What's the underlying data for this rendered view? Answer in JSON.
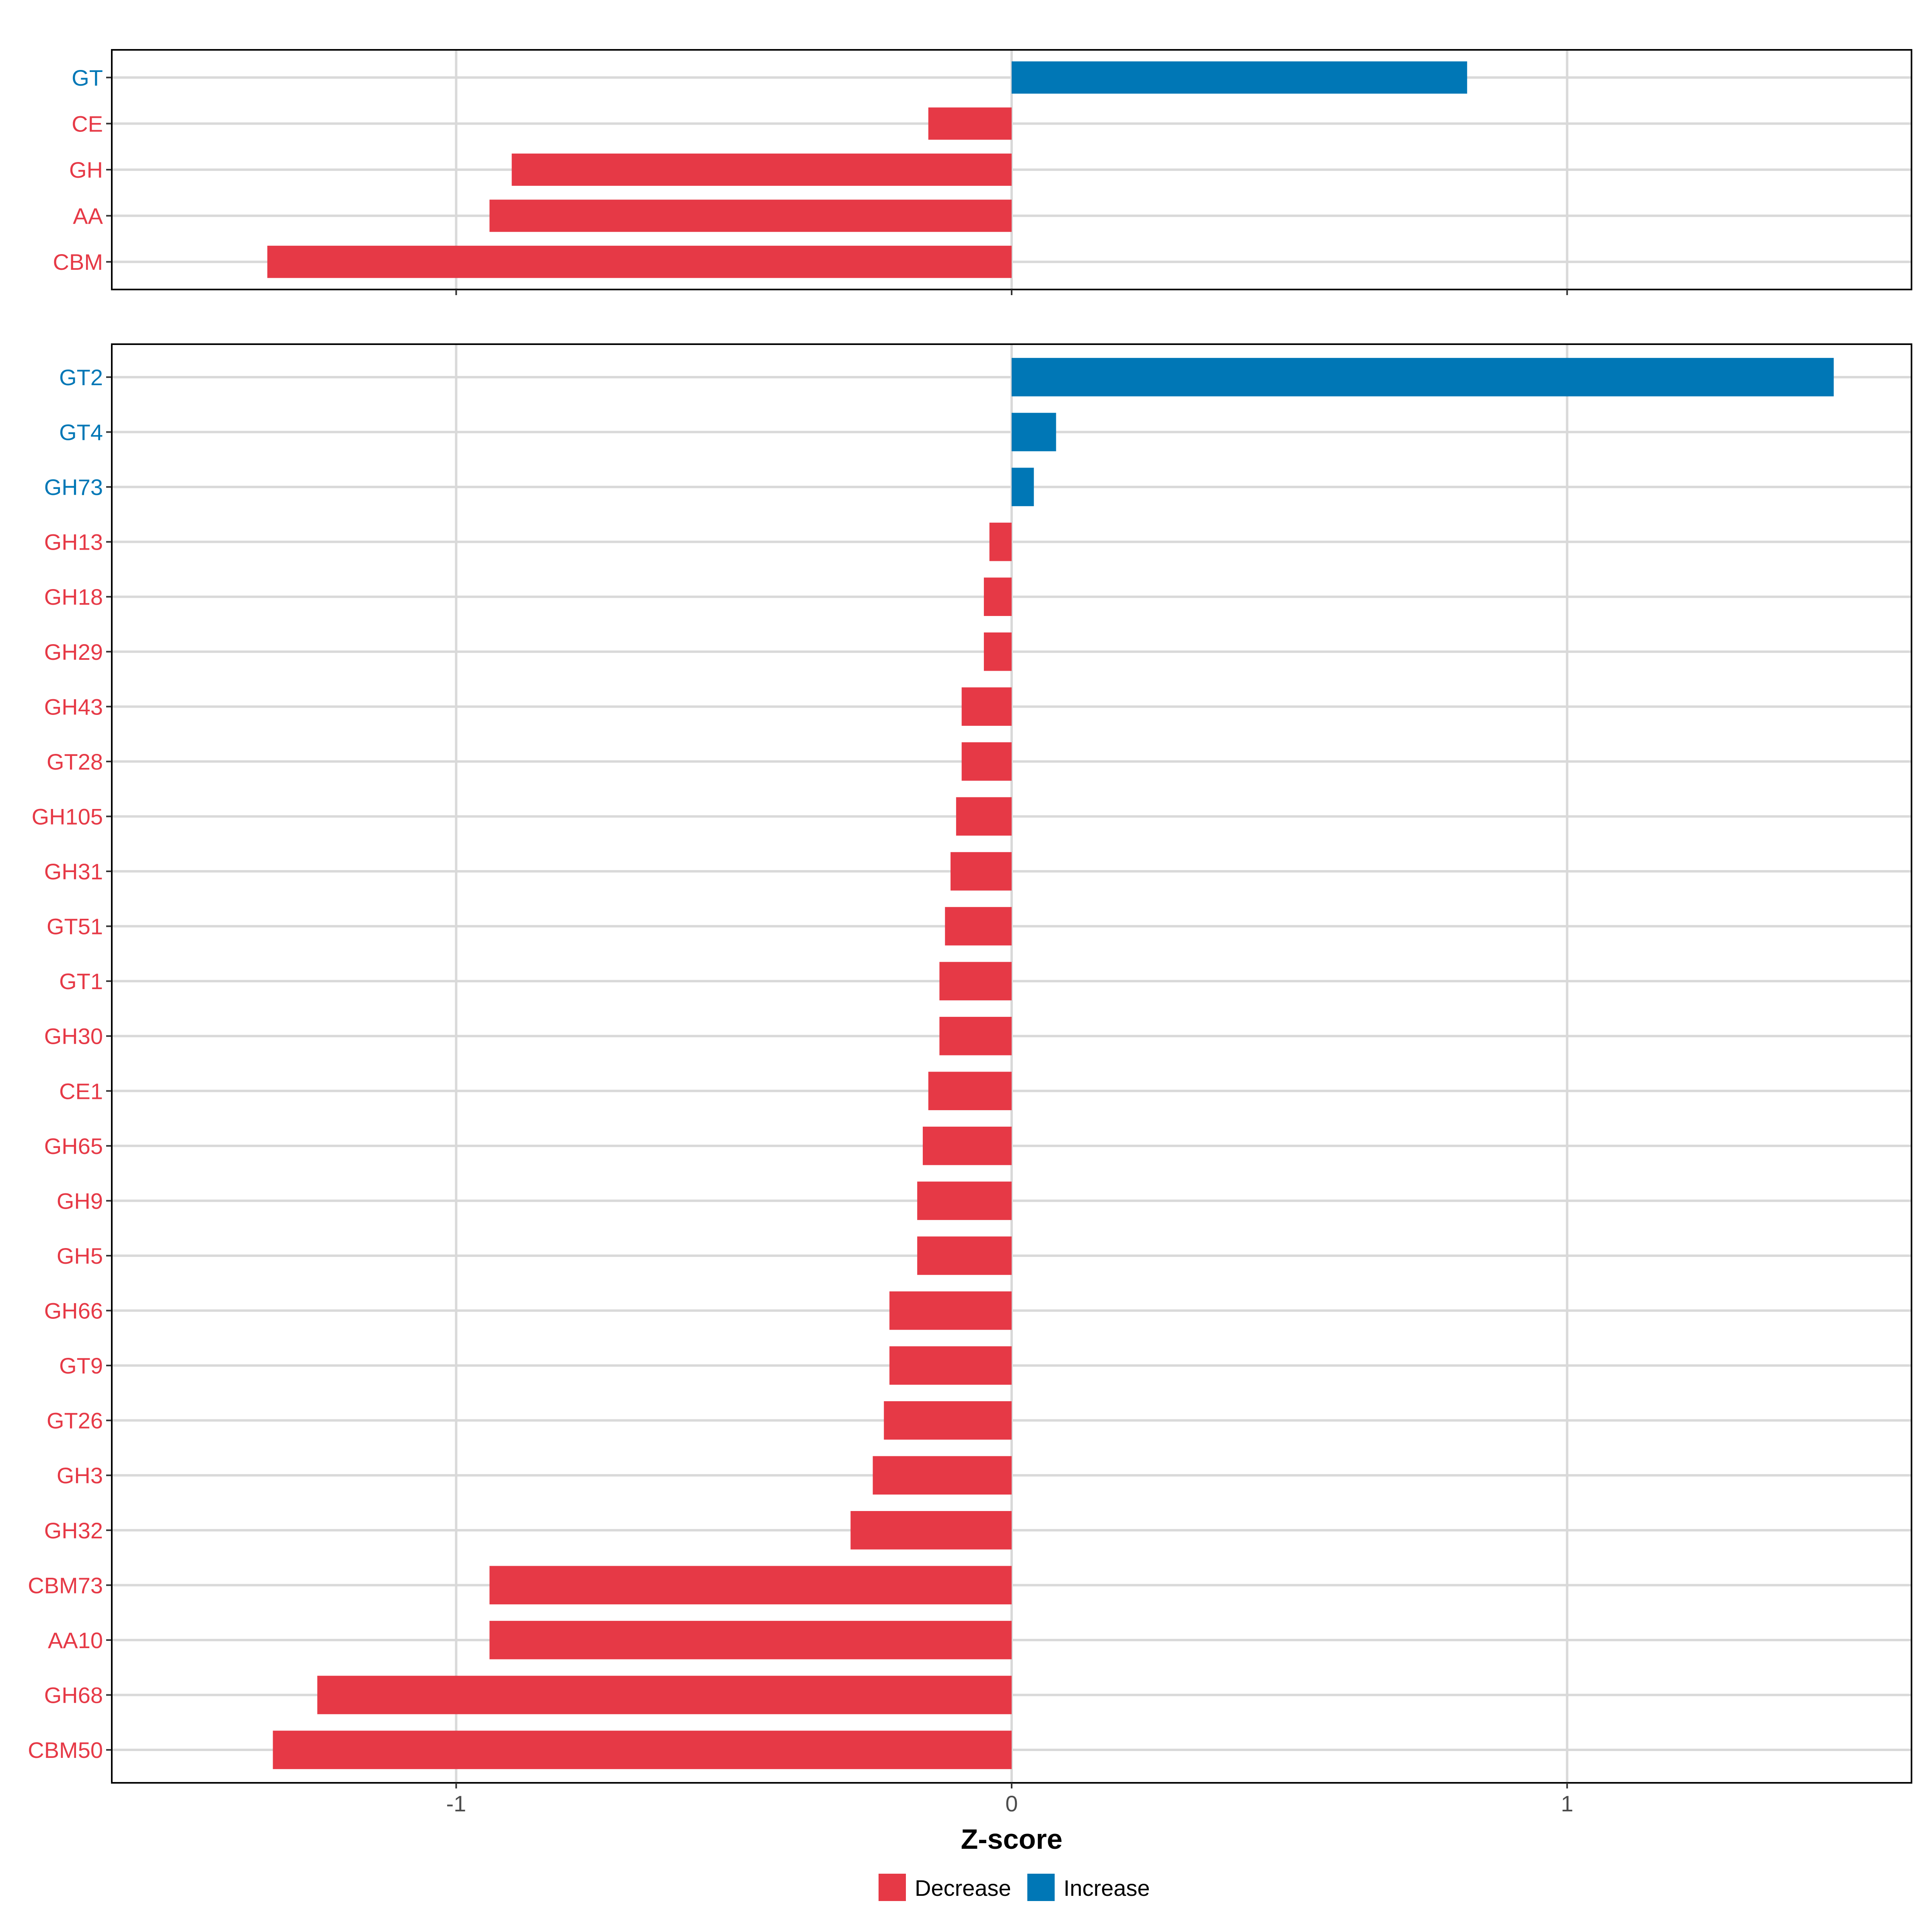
{
  "colors": {
    "decrease": "#E63946",
    "increase": "#0077B6",
    "grid": "#D9D9D9",
    "axis": "#333333"
  },
  "chart_data": [
    {
      "type": "bar",
      "orientation": "horizontal",
      "panel": "top",
      "categories": [
        "GT",
        "CE",
        "GH",
        "AA",
        "CBM"
      ],
      "values": [
        0.82,
        -0.15,
        -0.9,
        -0.94,
        -1.34
      ],
      "xlim": [
        -1.62,
        1.62
      ],
      "xticks": [
        -1,
        0,
        1
      ],
      "grid": true
    },
    {
      "type": "bar",
      "orientation": "horizontal",
      "panel": "bottom",
      "categories": [
        "GT2",
        "GT4",
        "GH73",
        "GH13",
        "GH18",
        "GH29",
        "GH43",
        "GT28",
        "GH105",
        "GH31",
        "GT51",
        "GT1",
        "GH30",
        "CE1",
        "GH65",
        "GH9",
        "GH5",
        "GH66",
        "GT9",
        "GT26",
        "GH3",
        "GH32",
        "CBM73",
        "AA10",
        "GH68",
        "CBM50"
      ],
      "values": [
        1.48,
        0.08,
        0.04,
        -0.04,
        -0.05,
        -0.05,
        -0.09,
        -0.09,
        -0.1,
        -0.11,
        -0.12,
        -0.13,
        -0.13,
        -0.15,
        -0.16,
        -0.17,
        -0.17,
        -0.22,
        -0.22,
        -0.23,
        -0.25,
        -0.29,
        -0.94,
        -0.94,
        -1.25,
        -1.33
      ],
      "xlim": [
        -1.62,
        1.62
      ],
      "xticks": [
        -1,
        0,
        1
      ],
      "tick_labels": [
        "-1",
        "0",
        "1"
      ],
      "xlabel": "Z-score",
      "grid": true
    }
  ],
  "legend": {
    "position": "bottom",
    "items": [
      {
        "label": "Decrease",
        "color_key": "decrease"
      },
      {
        "label": "Increase",
        "color_key": "increase"
      }
    ]
  }
}
